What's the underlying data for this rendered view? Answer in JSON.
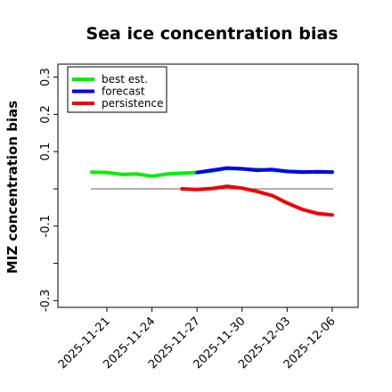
{
  "chart_data": {
    "type": "line",
    "title": "Sea ice concentration bias",
    "ylabel": "MIZ concentration bias",
    "xlabel": "",
    "ylim": [
      -0.32,
      0.33
    ],
    "yticks": [
      -0.3,
      -0.2,
      -0.1,
      0.0,
      0.1,
      0.2,
      0.3
    ],
    "yticklabels": [
      "-0.3",
      "",
      "-0.1",
      "",
      "0.1",
      "0.2",
      "0.3"
    ],
    "x_dates": [
      "2025-11-21",
      "2025-11-24",
      "2025-11-27",
      "2025-11-30",
      "2025-12-03",
      "2025-12-06"
    ],
    "xticklabels": [
      "2025-11-21",
      "2025-11-24",
      "2025-11-27",
      "2025-11-30",
      "2025-12-03",
      "2025-12-06"
    ],
    "highlighted_xtick": "2025-11-27",
    "highlight_color": "#2e8b2e",
    "grid": false,
    "legend_position": "upper-left",
    "reference_line": {
      "y": 0.0,
      "color": "#808080"
    },
    "series": [
      {
        "name": "best est.",
        "color": "#00ee00",
        "x": [
          "2025-11-20",
          "2025-11-21",
          "2025-11-22",
          "2025-11-23",
          "2025-11-24",
          "2025-11-25",
          "2025-11-26",
          "2025-11-27",
          "2025-11-28",
          "2025-11-29",
          "2025-11-30",
          "2025-12-01",
          "2025-12-02",
          "2025-12-03",
          "2025-12-04",
          "2025-12-05",
          "2025-12-06"
        ],
        "values": [
          0.045,
          0.044,
          0.039,
          0.04,
          0.034,
          0.04,
          0.042,
          0.044,
          0.048,
          0.055,
          0.053,
          0.052,
          0.05,
          0.047,
          0.046,
          0.045,
          0.046
        ]
      },
      {
        "name": "forecast",
        "color": "#0000ee",
        "x": [
          "2025-11-27",
          "2025-11-28",
          "2025-11-29",
          "2025-11-30",
          "2025-12-01",
          "2025-12-02",
          "2025-12-03",
          "2025-12-04",
          "2025-12-05",
          "2025-12-06"
        ],
        "values": [
          0.044,
          0.05,
          0.056,
          0.054,
          0.05,
          0.052,
          0.047,
          0.045,
          0.046,
          0.045
        ]
      },
      {
        "name": "persistence",
        "color": "#ee0000",
        "x": [
          "2025-11-26",
          "2025-11-27",
          "2025-11-28",
          "2025-11-29",
          "2025-11-30",
          "2025-12-01",
          "2025-12-02",
          "2025-12-03",
          "2025-12-04",
          "2025-12-05",
          "2025-12-06"
        ],
        "values": [
          0.0,
          -0.002,
          0.001,
          0.007,
          0.002,
          -0.007,
          -0.018,
          -0.038,
          -0.055,
          -0.066,
          -0.07
        ]
      }
    ]
  }
}
